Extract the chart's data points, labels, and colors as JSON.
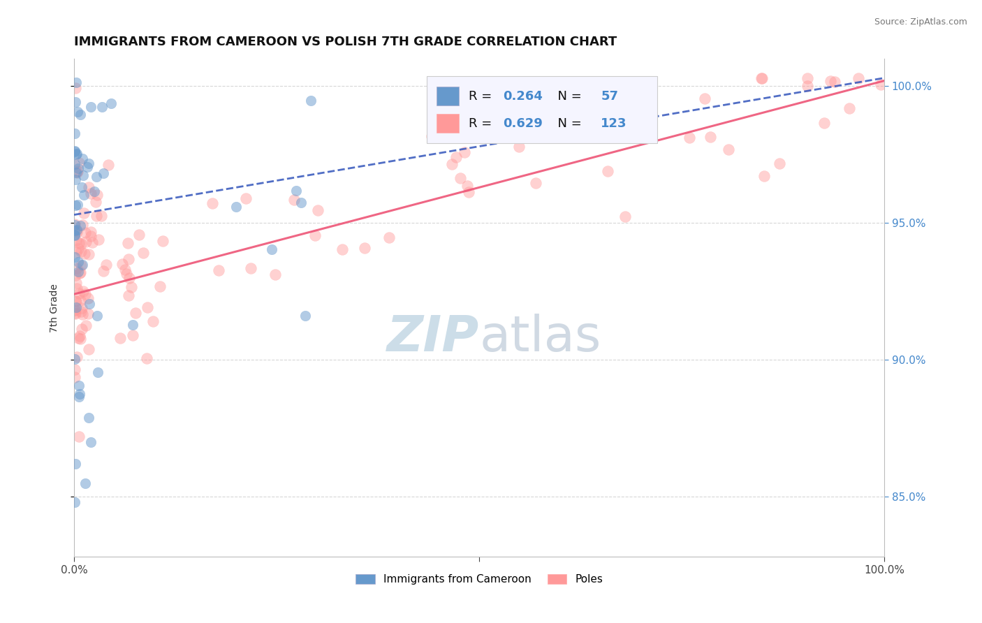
{
  "title": "IMMIGRANTS FROM CAMEROON VS POLISH 7TH GRADE CORRELATION CHART",
  "source": "Source: ZipAtlas.com",
  "ylabel": "7th Grade",
  "ytick_values": [
    0.85,
    0.9,
    0.95,
    1.0
  ],
  "ytick_labels": [
    "85.0%",
    "90.0%",
    "95.0%",
    "100.0%"
  ],
  "xlim": [
    0,
    1.0
  ],
  "ylim": [
    0.828,
    1.01
  ],
  "r_cameroon": 0.264,
  "n_cameroon": 57,
  "r_poles": 0.629,
  "n_poles": 123,
  "color_cameroon": "#6699CC",
  "color_poles": "#FF9999",
  "trendline_color_cameroon": "#3355BB",
  "trendline_color_poles": "#EE5577",
  "watermark_color": "#CCDDE8",
  "seed": 42
}
